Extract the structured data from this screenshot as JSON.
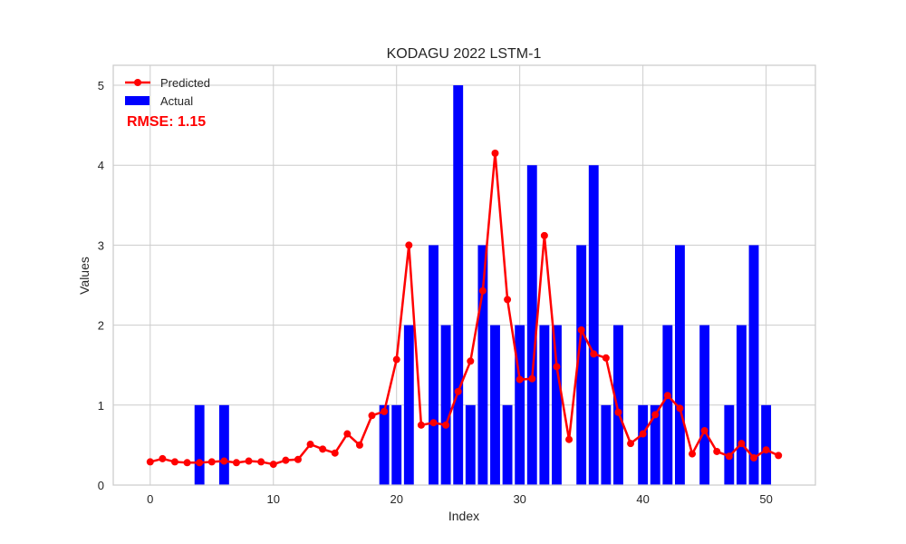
{
  "chart_data": {
    "type": "bar",
    "title": "KODAGU 2022 LSTM-1",
    "xlabel": "Index",
    "ylabel": "Values",
    "xlim": [
      -3,
      54
    ],
    "ylim": [
      0,
      5.25
    ],
    "xticks": [
      0,
      10,
      20,
      30,
      40,
      50
    ],
    "yticks": [
      0,
      1,
      2,
      3,
      4,
      5
    ],
    "grid": true,
    "legend": {
      "position": "top-left",
      "entries": [
        "Predicted",
        "Actual"
      ]
    },
    "annotation": "RMSE: 1.15",
    "series": [
      {
        "name": "Actual",
        "kind": "bar",
        "color": "#0000ff",
        "x": [
          0,
          1,
          2,
          3,
          4,
          5,
          6,
          7,
          8,
          9,
          10,
          11,
          12,
          13,
          14,
          15,
          16,
          17,
          18,
          19,
          20,
          21,
          22,
          23,
          24,
          25,
          26,
          27,
          28,
          29,
          30,
          31,
          32,
          33,
          34,
          35,
          36,
          37,
          38,
          39,
          40,
          41,
          42,
          43,
          44,
          45,
          46,
          47,
          48,
          49,
          50,
          51
        ],
        "values": [
          0,
          0,
          0,
          0,
          1,
          0,
          1,
          0,
          0,
          0,
          0,
          0,
          0,
          0,
          0,
          0,
          0,
          0,
          0,
          1,
          1,
          2,
          0,
          3,
          2,
          5,
          1,
          3,
          2,
          1,
          2,
          4,
          2,
          2,
          0,
          3,
          4,
          1,
          2,
          0,
          1,
          1,
          2,
          3,
          0,
          2,
          0,
          1,
          2,
          3,
          1,
          0
        ]
      },
      {
        "name": "Predicted",
        "kind": "line",
        "color": "#ff0000",
        "x": [
          0,
          1,
          2,
          3,
          4,
          5,
          6,
          7,
          8,
          9,
          10,
          11,
          12,
          13,
          14,
          15,
          16,
          17,
          18,
          19,
          20,
          21,
          22,
          23,
          24,
          25,
          26,
          27,
          28,
          29,
          30,
          31,
          32,
          33,
          34,
          35,
          36,
          37,
          38,
          39,
          40,
          41,
          42,
          43,
          44,
          45,
          46,
          47,
          48,
          49,
          50,
          51
        ],
        "values": [
          0.29,
          0.33,
          0.29,
          0.28,
          0.28,
          0.29,
          0.3,
          0.28,
          0.3,
          0.29,
          0.26,
          0.31,
          0.32,
          0.51,
          0.45,
          0.4,
          0.64,
          0.5,
          0.87,
          0.92,
          1.57,
          3.0,
          0.75,
          0.78,
          0.75,
          1.17,
          1.55,
          2.43,
          4.15,
          2.32,
          1.32,
          1.33,
          3.12,
          1.48,
          0.57,
          1.94,
          1.64,
          1.59,
          0.91,
          0.52,
          0.64,
          0.88,
          1.12,
          0.96,
          0.39,
          0.68,
          0.42,
          0.36,
          0.52,
          0.34,
          0.44,
          0.37
        ]
      }
    ]
  }
}
